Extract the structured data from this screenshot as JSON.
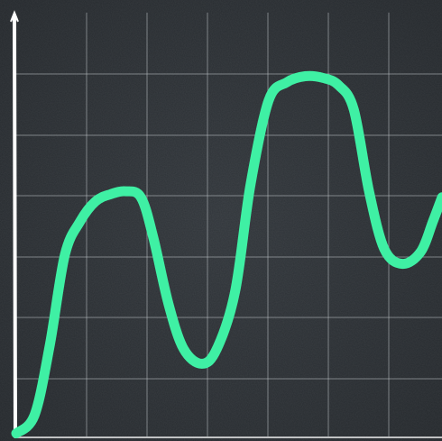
{
  "colors": {
    "background": "#2b2f33",
    "background_dark": "#1f2326",
    "grid": "#bfc5c8",
    "axis": "#ffffff",
    "line": "#3ff0a4"
  },
  "chart_data": {
    "type": "line",
    "title": "",
    "xlabel": "",
    "ylabel": "",
    "grid": true,
    "legend": "none",
    "xlim": [
      0,
      7
    ],
    "ylim": [
      0,
      7
    ],
    "series": [
      {
        "x": [
          0,
          0.3,
          0.55,
          0.8,
          1.05,
          1.3,
          1.55,
          1.8,
          2.05,
          2.25,
          2.5,
          2.75,
          3.05,
          3.3,
          3.6,
          3.85,
          4.15,
          4.45,
          4.75,
          5.05,
          5.3,
          5.55,
          5.8,
          6.05,
          6.35,
          6.65,
          6.85,
          7.0
        ],
        "y": [
          0.05,
          0.35,
          1.5,
          3.0,
          3.55,
          3.88,
          4.0,
          4.05,
          3.95,
          3.3,
          2.2,
          1.45,
          1.2,
          1.45,
          2.4,
          4.15,
          5.55,
          5.85,
          5.95,
          5.92,
          5.8,
          5.4,
          4.05,
          3.1,
          2.85,
          3.05,
          3.55,
          3.95
        ]
      }
    ]
  }
}
